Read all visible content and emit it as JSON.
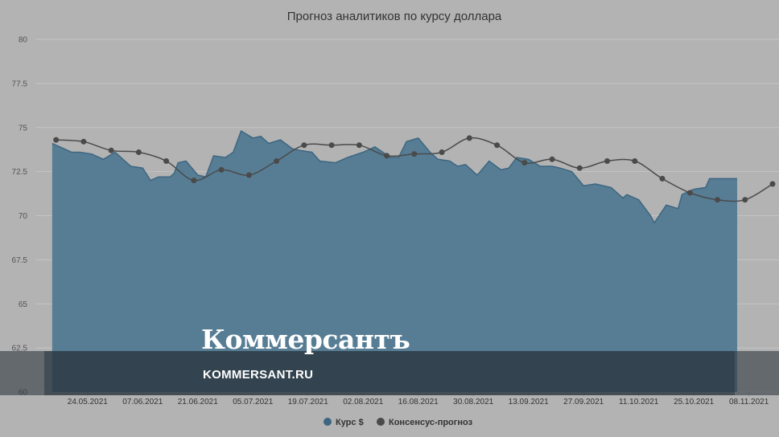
{
  "chart_data": {
    "type": "line",
    "title": "Прогноз аналитиков по курсу доллара",
    "ylim": [
      60,
      80
    ],
    "y_ticks": [
      "80",
      "77.5",
      "75",
      "72.5",
      "70",
      "67.5",
      "65",
      "62.5",
      "60"
    ],
    "x_tick_labels": [
      "24.05.2021",
      "07.06.2021",
      "21.06.2021",
      "05.07.2021",
      "19.07.2021",
      "02.08.2021",
      "16.08.2021",
      "30.08.2021",
      "13.09.2021",
      "27.09.2021",
      "11.10.2021",
      "25.10.2021",
      "08.11.2021"
    ],
    "grid": true,
    "legend_position": "bottom",
    "series": [
      {
        "name": "Курс $",
        "type": "area",
        "color": "#3d6680",
        "x": [
          "2021-05-15",
          "2021-05-17",
          "2021-05-20",
          "2021-05-22",
          "2021-05-25",
          "2021-05-28",
          "2021-05-31",
          "2021-06-02",
          "2021-06-04",
          "2021-06-07",
          "2021-06-09",
          "2021-06-11",
          "2021-06-14",
          "2021-06-15",
          "2021-06-16",
          "2021-06-18",
          "2021-06-21",
          "2021-06-23",
          "2021-06-25",
          "2021-06-28",
          "2021-06-30",
          "2021-07-02",
          "2021-07-05",
          "2021-07-07",
          "2021-07-09",
          "2021-07-12",
          "2021-07-15",
          "2021-07-17",
          "2021-07-20",
          "2021-07-22",
          "2021-07-26",
          "2021-07-29",
          "2021-08-02",
          "2021-08-05",
          "2021-08-09",
          "2021-08-11",
          "2021-08-13",
          "2021-08-16",
          "2021-08-19",
          "2021-08-21",
          "2021-08-24",
          "2021-08-26",
          "2021-08-28",
          "2021-08-31",
          "2021-09-03",
          "2021-09-06",
          "2021-09-08",
          "2021-09-10",
          "2021-09-13",
          "2021-09-16",
          "2021-09-19",
          "2021-09-21",
          "2021-09-24",
          "2021-09-27",
          "2021-09-30",
          "2021-10-04",
          "2021-10-07",
          "2021-10-08",
          "2021-10-11",
          "2021-10-14",
          "2021-10-15",
          "2021-10-18",
          "2021-10-21",
          "2021-10-22",
          "2021-10-25",
          "2021-10-28",
          "2021-10-29",
          "2021-11-01",
          "2021-11-03",
          "2021-11-05"
        ],
        "values": [
          74.1,
          73.9,
          73.6,
          73.6,
          73.5,
          73.2,
          73.6,
          73.2,
          72.8,
          72.7,
          72.0,
          72.2,
          72.2,
          72.4,
          73.0,
          73.1,
          72.3,
          72.2,
          73.4,
          73.3,
          73.6,
          74.8,
          74.4,
          74.5,
          74.1,
          74.3,
          73.8,
          73.7,
          73.6,
          73.1,
          73.0,
          73.3,
          73.6,
          73.9,
          73.3,
          73.3,
          74.2,
          74.4,
          73.6,
          73.2,
          73.1,
          72.8,
          72.9,
          72.3,
          73.1,
          72.6,
          72.7,
          73.3,
          73.2,
          72.8,
          72.8,
          72.7,
          72.5,
          71.7,
          71.8,
          71.6,
          71.0,
          71.2,
          70.9,
          70.0,
          69.6,
          70.6,
          70.4,
          71.2,
          71.5,
          71.6,
          72.1,
          72.1,
          72.1,
          72.1
        ]
      },
      {
        "name": "Консенсус-прогноз",
        "type": "line",
        "color": "#4a4a4a",
        "x": [
          "2021-05-16",
          "2021-05-23",
          "2021-05-30",
          "2021-06-06",
          "2021-06-13",
          "2021-06-20",
          "2021-06-27",
          "2021-07-04",
          "2021-07-11",
          "2021-07-18",
          "2021-07-25",
          "2021-08-01",
          "2021-08-08",
          "2021-08-15",
          "2021-08-22",
          "2021-08-29",
          "2021-09-05",
          "2021-09-12",
          "2021-09-19",
          "2021-09-26",
          "2021-10-03",
          "2021-10-10",
          "2021-10-17",
          "2021-10-24",
          "2021-10-31",
          "2021-11-07",
          "2021-11-14"
        ],
        "values": [
          74.3,
          74.2,
          73.7,
          73.6,
          73.1,
          72.0,
          72.6,
          72.3,
          73.1,
          74.0,
          74.0,
          74.0,
          73.4,
          73.5,
          73.6,
          74.4,
          74.0,
          73.0,
          73.2,
          72.7,
          73.1,
          73.1,
          72.1,
          71.3,
          70.9,
          70.9,
          71.8
        ]
      }
    ]
  },
  "watermark": {
    "brand": "Коммерсантъ",
    "domain": "KOMMERSANT.RU"
  }
}
